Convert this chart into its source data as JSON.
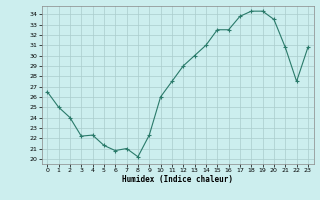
{
  "x": [
    0,
    1,
    2,
    3,
    4,
    5,
    6,
    7,
    8,
    9,
    10,
    11,
    12,
    13,
    14,
    15,
    16,
    17,
    18,
    19,
    20,
    21,
    22,
    23
  ],
  "y": [
    26.5,
    25.0,
    24.0,
    22.2,
    22.3,
    21.3,
    20.8,
    21.0,
    20.2,
    22.3,
    26.0,
    27.5,
    29.0,
    30.0,
    31.0,
    32.5,
    32.5,
    33.8,
    34.3,
    34.3,
    33.5,
    30.8,
    27.5,
    30.8
  ],
  "xlabel": "Humidex (Indice chaleur)",
  "ylim": [
    19.5,
    34.8
  ],
  "xlim": [
    -0.5,
    23.5
  ],
  "yticks": [
    20,
    21,
    22,
    23,
    24,
    25,
    26,
    27,
    28,
    29,
    30,
    31,
    32,
    33,
    34
  ],
  "xticks": [
    0,
    1,
    2,
    3,
    4,
    5,
    6,
    7,
    8,
    9,
    10,
    11,
    12,
    13,
    14,
    15,
    16,
    17,
    18,
    19,
    20,
    21,
    22,
    23
  ],
  "line_color": "#2a7a6a",
  "bg_color": "#cceeee",
  "grid_color": "#aacccc"
}
